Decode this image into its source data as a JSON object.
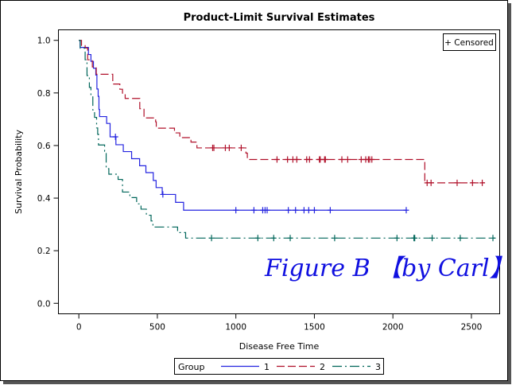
{
  "chart_data": {
    "type": "line",
    "step": true,
    "title": "Product-Limit Survival Estimates",
    "xlabel": "Disease Free Time",
    "ylabel": "Survival Probability",
    "xlim": [
      -130,
      2680
    ],
    "ylim": [
      -0.04,
      1.04
    ],
    "xticks": [
      0,
      500,
      1000,
      1500,
      2000,
      2500
    ],
    "yticks": [
      "0.0",
      "0.2",
      "0.4",
      "0.6",
      "0.8",
      "1.0"
    ],
    "grid": false,
    "censor_legend": "+ Censored",
    "legend": {
      "title": "Group",
      "placement": "bottom"
    },
    "watermark": "Figure B 【by Carl】",
    "series": [
      {
        "name": "1",
        "color": "#2424e0",
        "dash": "solid",
        "end": 2085,
        "steps": [
          [
            0,
            1.0
          ],
          [
            8,
            0.973
          ],
          [
            61,
            0.946
          ],
          [
            77,
            0.92
          ],
          [
            93,
            0.894
          ],
          [
            108,
            0.868
          ],
          [
            115,
            0.815
          ],
          [
            123,
            0.787
          ],
          [
            128,
            0.737
          ],
          [
            132,
            0.71
          ],
          [
            177,
            0.684
          ],
          [
            199,
            0.633
          ],
          [
            236,
            0.603
          ],
          [
            283,
            0.577
          ],
          [
            336,
            0.55
          ],
          [
            387,
            0.523
          ],
          [
            427,
            0.497
          ],
          [
            474,
            0.467
          ],
          [
            492,
            0.44
          ],
          [
            531,
            0.414
          ],
          [
            616,
            0.384
          ],
          [
            667,
            0.354
          ]
        ],
        "censored": [
          233,
          535,
          1000,
          1115,
          1171,
          1186,
          1199,
          1334,
          1380,
          1434,
          1464,
          1500,
          1601,
          2085
        ]
      },
      {
        "name": "2",
        "color": "#b0102a",
        "dash": "dashed",
        "end": 2586,
        "steps": [
          [
            0,
            1.0
          ],
          [
            17,
            0.98
          ],
          [
            40,
            0.971
          ],
          [
            56,
            0.926
          ],
          [
            86,
            0.899
          ],
          [
            111,
            0.871
          ],
          [
            216,
            0.834
          ],
          [
            261,
            0.814
          ],
          [
            278,
            0.799
          ],
          [
            295,
            0.779
          ],
          [
            388,
            0.74
          ],
          [
            415,
            0.705
          ],
          [
            489,
            0.69
          ],
          [
            493,
            0.666
          ],
          [
            609,
            0.648
          ],
          [
            643,
            0.63
          ],
          [
            714,
            0.613
          ],
          [
            752,
            0.591
          ],
          [
            1064,
            0.571
          ],
          [
            1073,
            0.547
          ],
          [
            2203,
            0.458
          ]
        ],
        "censored": [
          852,
          860,
          933,
          958,
          1034,
          1262,
          1329,
          1363,
          1388,
          1451,
          1469,
          1532,
          1537,
          1565,
          1570,
          1675,
          1712,
          1798,
          1827,
          1844,
          1852,
          1866,
          2218,
          2243,
          2409,
          2507,
          2569
        ]
      },
      {
        "name": "3",
        "color": "#00665a",
        "dash": "dashdot",
        "end": 2652,
        "steps": [
          [
            0,
            1.0
          ],
          [
            9,
            0.97
          ],
          [
            40,
            0.926
          ],
          [
            52,
            0.866
          ],
          [
            67,
            0.821
          ],
          [
            77,
            0.787
          ],
          [
            89,
            0.735
          ],
          [
            100,
            0.707
          ],
          [
            113,
            0.667
          ],
          [
            120,
            0.643
          ],
          [
            125,
            0.602
          ],
          [
            164,
            0.578
          ],
          [
            174,
            0.512
          ],
          [
            191,
            0.491
          ],
          [
            250,
            0.471
          ],
          [
            278,
            0.423
          ],
          [
            325,
            0.402
          ],
          [
            368,
            0.378
          ],
          [
            396,
            0.358
          ],
          [
            430,
            0.335
          ],
          [
            460,
            0.313
          ],
          [
            472,
            0.29
          ],
          [
            629,
            0.269
          ],
          [
            680,
            0.248
          ]
        ],
        "censored": [
          845,
          1140,
          1241,
          1346,
          1629,
          2026,
          2134,
          2139,
          2250,
          2429,
          2637
        ]
      }
    ]
  }
}
